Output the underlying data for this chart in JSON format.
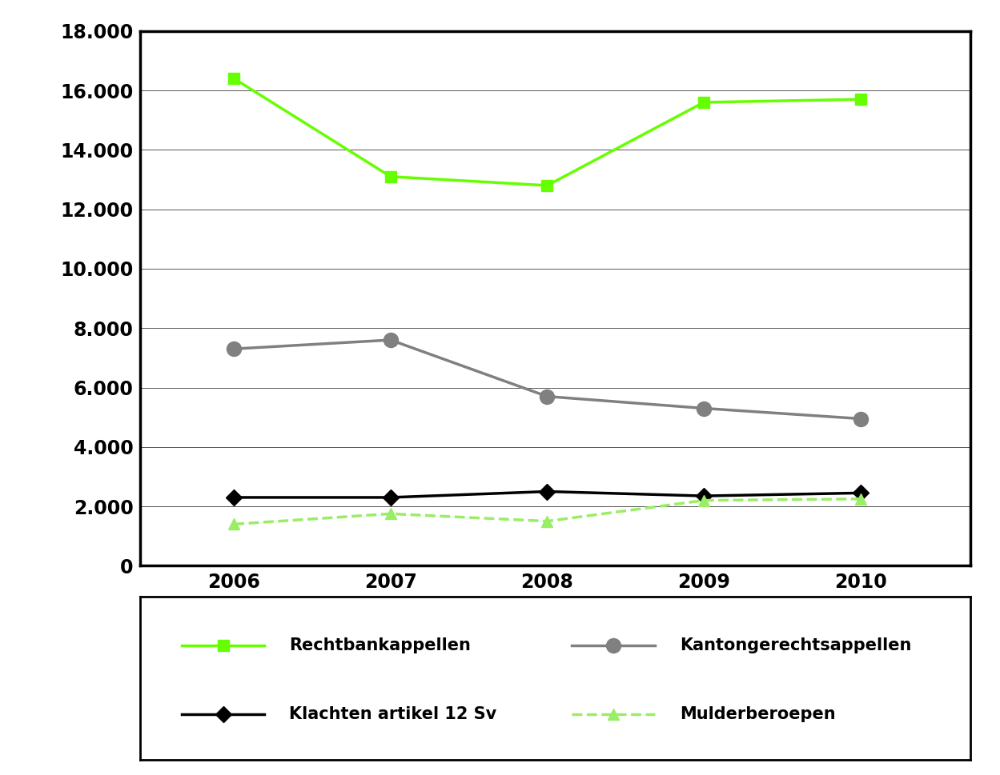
{
  "years": [
    2006,
    2007,
    2008,
    2009,
    2010
  ],
  "rechtbankappellen": [
    16400,
    13100,
    12800,
    15600,
    15700
  ],
  "kantongerechtsappellen": [
    7300,
    7600,
    5700,
    5300,
    4950
  ],
  "klachten_artikel_12": [
    2300,
    2300,
    2500,
    2350,
    2450
  ],
  "mulderberoepen": [
    1400,
    1750,
    1500,
    2200,
    2250
  ],
  "rechtbank_color": "#66ff00",
  "kantong_color": "#808080",
  "klachten_color": "#000000",
  "mulder_color": "#99ee66",
  "ylim": [
    0,
    18000
  ],
  "yticks": [
    0,
    2000,
    4000,
    6000,
    8000,
    10000,
    12000,
    14000,
    16000,
    18000
  ],
  "ytick_labels": [
    "0",
    "2.000",
    "4.000",
    "6.000",
    "8.000",
    "10.000",
    "12.000",
    "14.000",
    "16.000",
    "18.000"
  ],
  "xticks": [
    2006,
    2007,
    2008,
    2009,
    2010
  ],
  "legend_labels": [
    "Rechtbankappellen",
    "Kantongerechtsappellen",
    "Klachten artikel 12 Sv",
    "Mulderberoepen"
  ],
  "background_color": "#ffffff"
}
